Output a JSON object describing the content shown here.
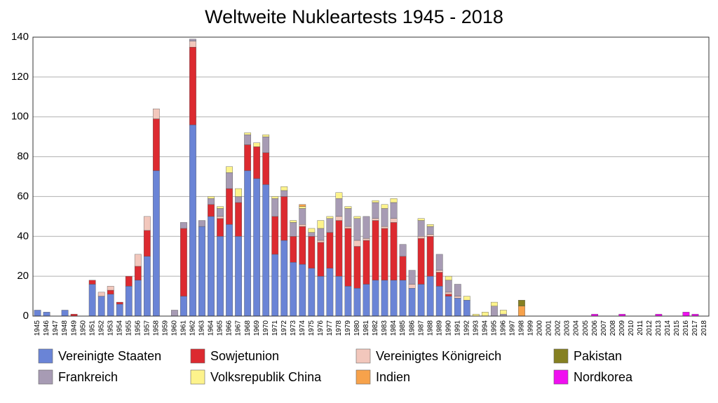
{
  "chart_data": {
    "type": "stacked-bar",
    "title": "Weltweite Nukleartests 1945 - 2018",
    "categories": [
      "1945",
      "1946",
      "1947",
      "1948",
      "1949",
      "1950",
      "1951",
      "1952",
      "1953",
      "1954",
      "1955",
      "1956",
      "1957",
      "1958",
      "1959",
      "1960",
      "1961",
      "1962",
      "1963",
      "1964",
      "1965",
      "1966",
      "1967",
      "1968",
      "1969",
      "1970",
      "1971",
      "1972",
      "1973",
      "1974",
      "1975",
      "1976",
      "1977",
      "1978",
      "1979",
      "1980",
      "1981",
      "1982",
      "1983",
      "1984",
      "1985",
      "1986",
      "1987",
      "1988",
      "1989",
      "1990",
      "1991",
      "1992",
      "1993",
      "1994",
      "1995",
      "1996",
      "1997",
      "1998",
      "1999",
      "2000",
      "2001",
      "2002",
      "2003",
      "2004",
      "2005",
      "2006",
      "2007",
      "2008",
      "2009",
      "2010",
      "2011",
      "2012",
      "2013",
      "2014",
      "2015",
      "2016",
      "2017",
      "2018"
    ],
    "series": [
      {
        "name": "Vereinigte Staaten",
        "color": "#6a84d6",
        "values": [
          3,
          2,
          0,
          3,
          0,
          0,
          16,
          10,
          11,
          6,
          15,
          18,
          30,
          73,
          0,
          0,
          10,
          96,
          45,
          50,
          40,
          46,
          40,
          73,
          69,
          66,
          31,
          38,
          27,
          26,
          24,
          20,
          24,
          20,
          15,
          14,
          16,
          18,
          18,
          18,
          18,
          14,
          16,
          20,
          15,
          10,
          9,
          8,
          0,
          0,
          0,
          0,
          0,
          0,
          0,
          0,
          0,
          0,
          0,
          0,
          0,
          0,
          0,
          0,
          0,
          0,
          0,
          0,
          0,
          0,
          0,
          0,
          0,
          0
        ]
      },
      {
        "name": "Sowjetunion",
        "color": "#dc2a30",
        "values": [
          0,
          0,
          0,
          0,
          1,
          0,
          2,
          0,
          2,
          1,
          5,
          7,
          13,
          26,
          0,
          0,
          34,
          39,
          0,
          6,
          9,
          18,
          17,
          13,
          16,
          16,
          19,
          22,
          13,
          19,
          16,
          17,
          18,
          28,
          29,
          21,
          22,
          30,
          26,
          29,
          12,
          0,
          23,
          20,
          7,
          1,
          0,
          0,
          0,
          0,
          0,
          0,
          0,
          0,
          0,
          0,
          0,
          0,
          0,
          0,
          0,
          0,
          0,
          0,
          0,
          0,
          0,
          0,
          0,
          0,
          0,
          0,
          0,
          0
        ]
      },
      {
        "name": "Vereinigtes Königreich",
        "color": "#f2c7bc",
        "values": [
          0,
          0,
          0,
          0,
          0,
          0,
          0,
          2,
          2,
          0,
          0,
          6,
          7,
          5,
          0,
          0,
          0,
          3,
          0,
          0,
          1,
          0,
          0,
          0,
          0,
          0,
          0,
          0,
          0,
          1,
          0,
          1,
          0,
          2,
          1,
          3,
          1,
          1,
          1,
          2,
          0,
          2,
          1,
          1,
          1,
          1,
          1,
          0,
          0,
          0,
          0,
          0,
          0,
          0,
          0,
          0,
          0,
          0,
          0,
          0,
          0,
          0,
          0,
          0,
          0,
          0,
          0,
          0,
          0,
          0,
          0,
          0,
          0,
          0
        ]
      },
      {
        "name": "Frankreich",
        "color": "#a79bb4",
        "values": [
          0,
          0,
          0,
          0,
          0,
          0,
          0,
          0,
          0,
          0,
          0,
          0,
          0,
          0,
          0,
          3,
          3,
          1,
          3,
          3,
          4,
          8,
          3,
          5,
          0,
          8,
          9,
          3,
          7,
          8,
          2,
          6,
          7,
          9,
          9,
          11,
          11,
          8,
          9,
          8,
          6,
          7,
          8,
          4,
          8,
          6,
          6,
          0,
          0,
          0,
          5,
          1,
          0,
          0,
          0,
          0,
          0,
          0,
          0,
          0,
          0,
          0,
          0,
          0,
          0,
          0,
          0,
          0,
          0,
          0,
          0,
          0,
          0,
          0
        ]
      },
      {
        "name": "Volksrepublik China",
        "color": "#fdf38c",
        "values": [
          0,
          0,
          0,
          0,
          0,
          0,
          0,
          0,
          0,
          0,
          0,
          0,
          0,
          0,
          0,
          0,
          0,
          0,
          0,
          1,
          1,
          3,
          4,
          1,
          2,
          1,
          1,
          2,
          1,
          1,
          2,
          4,
          1,
          3,
          1,
          1,
          0,
          1,
          2,
          2,
          0,
          0,
          1,
          1,
          0,
          2,
          0,
          2,
          1,
          2,
          2,
          2,
          0,
          0,
          0,
          0,
          0,
          0,
          0,
          0,
          0,
          0,
          0,
          0,
          0,
          0,
          0,
          0,
          0,
          0,
          0,
          0,
          0,
          0
        ]
      },
      {
        "name": "Indien",
        "color": "#f7a24b",
        "values": [
          0,
          0,
          0,
          0,
          0,
          0,
          0,
          0,
          0,
          0,
          0,
          0,
          0,
          0,
          0,
          0,
          0,
          0,
          0,
          0,
          0,
          0,
          0,
          0,
          0,
          0,
          0,
          0,
          0,
          1,
          0,
          0,
          0,
          0,
          0,
          0,
          0,
          0,
          0,
          0,
          0,
          0,
          0,
          0,
          0,
          0,
          0,
          0,
          0,
          0,
          0,
          0,
          0,
          5,
          0,
          0,
          0,
          0,
          0,
          0,
          0,
          0,
          0,
          0,
          0,
          0,
          0,
          0,
          0,
          0,
          0,
          0,
          0,
          0
        ]
      },
      {
        "name": "Pakistan",
        "color": "#858021",
        "values": [
          0,
          0,
          0,
          0,
          0,
          0,
          0,
          0,
          0,
          0,
          0,
          0,
          0,
          0,
          0,
          0,
          0,
          0,
          0,
          0,
          0,
          0,
          0,
          0,
          0,
          0,
          0,
          0,
          0,
          0,
          0,
          0,
          0,
          0,
          0,
          0,
          0,
          0,
          0,
          0,
          0,
          0,
          0,
          0,
          0,
          0,
          0,
          0,
          0,
          0,
          0,
          0,
          0,
          3,
          0,
          0,
          0,
          0,
          0,
          0,
          0,
          0,
          0,
          0,
          0,
          0,
          0,
          0,
          0,
          0,
          0,
          0,
          0,
          0
        ]
      },
      {
        "name": "Nordkorea",
        "color": "#f00ff0",
        "values": [
          0,
          0,
          0,
          0,
          0,
          0,
          0,
          0,
          0,
          0,
          0,
          0,
          0,
          0,
          0,
          0,
          0,
          0,
          0,
          0,
          0,
          0,
          0,
          0,
          0,
          0,
          0,
          0,
          0,
          0,
          0,
          0,
          0,
          0,
          0,
          0,
          0,
          0,
          0,
          0,
          0,
          0,
          0,
          0,
          0,
          0,
          0,
          0,
          0,
          0,
          0,
          0,
          0,
          0,
          0,
          0,
          0,
          0,
          0,
          0,
          0,
          1,
          0,
          0,
          1,
          0,
          0,
          0,
          1,
          0,
          0,
          2,
          1,
          0
        ]
      }
    ],
    "ylim": [
      0,
      140
    ],
    "yticks": [
      0,
      20,
      40,
      60,
      80,
      100,
      120,
      140
    ],
    "grid": true
  }
}
